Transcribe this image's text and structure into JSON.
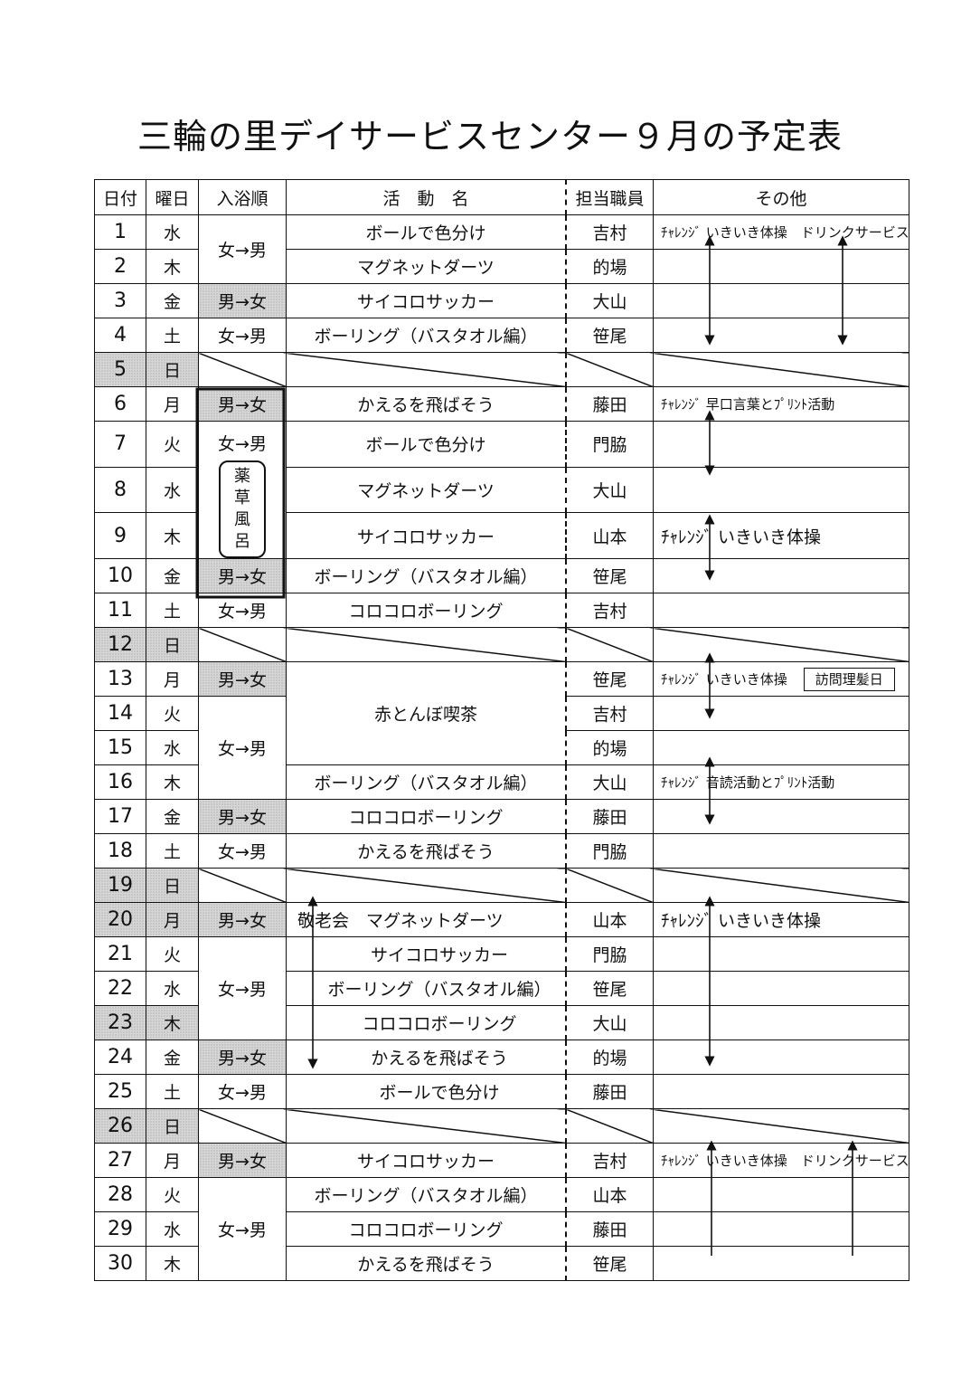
{
  "title": "三輪の里デイサービスセンター９月の予定表",
  "headers": [
    "日付",
    "曜日",
    "入浴順",
    "活　動　名",
    "担当職員",
    "その他"
  ],
  "rows": [
    {
      "day": "1",
      "weekday": "水",
      "staff": "吉村",
      "other": "ﾁｬﾚﾝｼﾞ いきいき体操　ドリンクサービス"
    },
    {
      "day": "2",
      "weekday": "木",
      "staff": "的場",
      "other": ""
    },
    {
      "day": "3",
      "weekday": "金",
      "staff": "大山",
      "other": ""
    },
    {
      "day": "4",
      "weekday": "土",
      "staff": "笹尾",
      "other": ""
    },
    {
      "day": "5",
      "weekday": "日",
      "staff": "",
      "other": "",
      "holiday": true,
      "closed": true
    },
    {
      "day": "6",
      "weekday": "月",
      "staff": "藤田",
      "other": "ﾁｬﾚﾝｼﾞ 早口言葉とﾌﾟﾘﾝﾄ活動"
    },
    {
      "day": "7",
      "weekday": "火",
      "staff": "門脇",
      "other": ""
    },
    {
      "day": "8",
      "weekday": "水",
      "staff": "大山",
      "other": ""
    },
    {
      "day": "9",
      "weekday": "木",
      "staff": "山本",
      "other": "ﾁｬﾚﾝｼﾞ いきいき体操"
    },
    {
      "day": "10",
      "weekday": "金",
      "staff": "笹尾",
      "other": ""
    },
    {
      "day": "11",
      "weekday": "土",
      "staff": "吉村",
      "other": ""
    },
    {
      "day": "12",
      "weekday": "日",
      "staff": "",
      "other": "",
      "holiday": true,
      "closed": true
    },
    {
      "day": "13",
      "weekday": "月",
      "staff": "笹尾",
      "other": "ﾁｬﾚﾝｼﾞ いきいき体操",
      "badge": "訪問理髪日"
    },
    {
      "day": "14",
      "weekday": "火",
      "staff": "吉村",
      "other": ""
    },
    {
      "day": "15",
      "weekday": "水",
      "staff": "的場",
      "other": ""
    },
    {
      "day": "16",
      "weekday": "木",
      "staff": "大山",
      "other": "ﾁｬﾚﾝｼﾞ 音読活動とﾌﾟﾘﾝﾄ活動"
    },
    {
      "day": "17",
      "weekday": "金",
      "staff": "藤田",
      "other": ""
    },
    {
      "day": "18",
      "weekday": "土",
      "staff": "門脇",
      "other": ""
    },
    {
      "day": "19",
      "weekday": "日",
      "staff": "",
      "other": "",
      "holiday": true,
      "closed": true
    },
    {
      "day": "20",
      "weekday": "月",
      "staff": "山本",
      "other": "ﾁｬﾚﾝｼﾞ いきいき体操",
      "holiday": true
    },
    {
      "day": "21",
      "weekday": "火",
      "staff": "門脇",
      "other": ""
    },
    {
      "day": "22",
      "weekday": "水",
      "staff": "笹尾",
      "other": ""
    },
    {
      "day": "23",
      "weekday": "木",
      "staff": "大山",
      "other": "",
      "holiday": true
    },
    {
      "day": "24",
      "weekday": "金",
      "staff": "的場",
      "other": ""
    },
    {
      "day": "25",
      "weekday": "土",
      "staff": "藤田",
      "other": ""
    },
    {
      "day": "26",
      "weekday": "日",
      "staff": "",
      "other": "",
      "holiday": true,
      "closed": true
    },
    {
      "day": "27",
      "weekday": "月",
      "staff": "吉村",
      "other": "ﾁｬﾚﾝｼﾞ いきいき体操　ドリンクサービス"
    },
    {
      "day": "28",
      "weekday": "火",
      "staff": "山本",
      "other": ""
    },
    {
      "day": "29",
      "weekday": "水",
      "staff": "藤田",
      "other": ""
    },
    {
      "day": "30",
      "weekday": "木",
      "staff": "笹尾",
      "other": ""
    }
  ],
  "bath": [
    {
      "text": "女→男",
      "span": 2
    },
    {
      "text": "男→女",
      "span": 1,
      "shaded": true
    },
    {
      "text": "女→男",
      "span": 1
    },
    {
      "closed": true,
      "span": 1
    },
    {
      "text": "男→女",
      "span": 1,
      "shaded": true
    },
    {
      "text": "女→男",
      "span": 3,
      "note": "薬草風呂"
    },
    {
      "text": "男→女",
      "span": 1,
      "shaded": true
    },
    {
      "text": "女→男",
      "span": 1
    },
    {
      "closed": true,
      "span": 1
    },
    {
      "text": "男→女",
      "span": 1,
      "shaded": true
    },
    {
      "text": "女→男",
      "span": 3
    },
    {
      "text": "男→女",
      "span": 1,
      "shaded": true
    },
    {
      "text": "女→男",
      "span": 1
    },
    {
      "closed": true,
      "span": 1
    },
    {
      "text": "男→女",
      "span": 1,
      "shaded": true
    },
    {
      "text": "女→男",
      "span": 3
    },
    {
      "text": "男→女",
      "span": 1,
      "shaded": true
    },
    {
      "text": "女→男",
      "span": 1
    },
    {
      "closed": true,
      "span": 1
    },
    {
      "text": "男→女",
      "span": 1,
      "shaded": true
    },
    {
      "text": "女→男",
      "span": 3
    }
  ],
  "activities": [
    {
      "text": "ボールで色分け",
      "span": 1
    },
    {
      "text": "マグネットダーツ",
      "span": 1
    },
    {
      "text": "サイコロサッカー",
      "span": 1
    },
    {
      "text": "ボーリング（バスタオル編）",
      "span": 1
    },
    {
      "closed": true,
      "span": 1
    },
    {
      "text": "かえるを飛ばそう",
      "span": 1
    },
    {
      "text": "ボールで色分け",
      "span": 1
    },
    {
      "text": "マグネットダーツ",
      "span": 1
    },
    {
      "text": "サイコロサッカー",
      "span": 1
    },
    {
      "text": "ボーリング（バスタオル編）",
      "span": 1
    },
    {
      "text": "コロコロボーリング",
      "span": 1
    },
    {
      "closed": true,
      "span": 1
    },
    {
      "text": "赤とんぼ喫茶",
      "span": 3
    },
    {
      "text": "ボーリング（バスタオル編）",
      "span": 1
    },
    {
      "text": "コロコロボーリング",
      "span": 1
    },
    {
      "text": "かえるを飛ばそう",
      "span": 1
    },
    {
      "closed": true,
      "span": 1
    },
    {
      "text": "敬老会　マグネットダーツ",
      "span": 1,
      "align": "left"
    },
    {
      "text": "サイコロサッカー",
      "span": 1,
      "align": "indent"
    },
    {
      "text": "ボーリング（バスタオル編）",
      "span": 1,
      "align": "indent"
    },
    {
      "text": "コロコロボーリング",
      "span": 1,
      "align": "indent"
    },
    {
      "text": "かえるを飛ばそう",
      "span": 1,
      "align": "indent"
    },
    {
      "text": "ボールで色分け",
      "span": 1,
      "align": "indent"
    },
    {
      "closed": true,
      "span": 1
    },
    {
      "text": "サイコロサッカー",
      "span": 1
    },
    {
      "text": "ボーリング（バスタオル編）",
      "span": 1
    },
    {
      "text": "コロコロボーリング",
      "span": 1
    },
    {
      "text": "かえるを飛ばそう",
      "span": 1
    }
  ]
}
